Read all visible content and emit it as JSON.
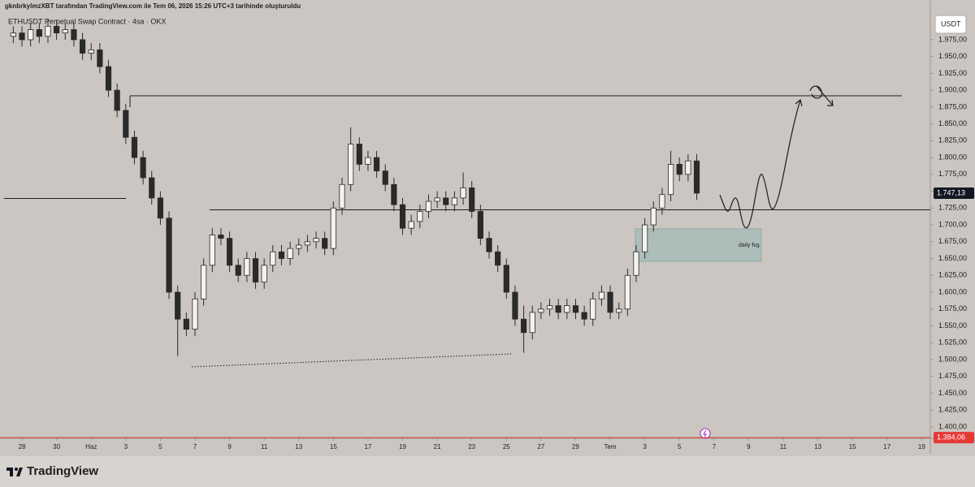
{
  "header": {
    "caption": "gknbrkylmzXBT tarafından TradingView.com ile Tem 06, 2026 15:26 UTC+3 tarihinde oluşturuldu"
  },
  "chart_data": {
    "type": "candlestick",
    "title": "ETHUSDT Perpetual Swap Contract · 4sa · OKX",
    "currency": "USDT",
    "x": [
      -0.5,
      0,
      0.5,
      1,
      1.5,
      2,
      2.5,
      3,
      3.5,
      4,
      4.5,
      5,
      5.5,
      6,
      6.5,
      7,
      7.5,
      8,
      8.5,
      9,
      9.5,
      10,
      10.5,
      11,
      11.5,
      12,
      12.5,
      13,
      13.5,
      14,
      14.5,
      15,
      15.5,
      16,
      16.5,
      17,
      17.5,
      18,
      18.5,
      19,
      19.5,
      20,
      20.5,
      21,
      21.5,
      22,
      22.5,
      23,
      23.5,
      24,
      24.5,
      25,
      25.5,
      26,
      26.5,
      27,
      27.5,
      28,
      28.5,
      29,
      29.5,
      30,
      30.5,
      31,
      31.5,
      32,
      32.5,
      33,
      33.5,
      34,
      34.5,
      35,
      35.5,
      36,
      36.5,
      37,
      37.5,
      38,
      38.5,
      39
    ],
    "open": [
      1980,
      1985,
      1975,
      1990,
      1980,
      1995,
      1985,
      1990,
      1975,
      1955,
      1960,
      1935,
      1900,
      1870,
      1830,
      1800,
      1770,
      1740,
      1710,
      1600,
      1560,
      1545,
      1590,
      1640,
      1685,
      1680,
      1640,
      1625,
      1650,
      1615,
      1640,
      1660,
      1650,
      1665,
      1670,
      1675,
      1680,
      1665,
      1725,
      1760,
      1820,
      1790,
      1800,
      1780,
      1760,
      1730,
      1695,
      1705,
      1720,
      1735,
      1740,
      1730,
      1740,
      1755,
      1720,
      1680,
      1660,
      1640,
      1600,
      1560,
      1540,
      1570,
      1575,
      1580,
      1570,
      1580,
      1570,
      1560,
      1590,
      1600,
      1570,
      1575,
      1625,
      1660,
      1700,
      1725,
      1745,
      1790,
      1775,
      1795
    ],
    "high": [
      1995,
      1995,
      2000,
      2000,
      2005,
      2005,
      2000,
      2000,
      1985,
      1970,
      1970,
      1945,
      1910,
      1880,
      1840,
      1810,
      1780,
      1750,
      1720,
      1610,
      1570,
      1600,
      1650,
      1695,
      1695,
      1690,
      1650,
      1660,
      1660,
      1650,
      1670,
      1670,
      1675,
      1680,
      1685,
      1690,
      1690,
      1735,
      1770,
      1845,
      1830,
      1810,
      1810,
      1790,
      1770,
      1740,
      1715,
      1730,
      1745,
      1750,
      1750,
      1750,
      1778,
      1765,
      1730,
      1690,
      1670,
      1650,
      1610,
      1580,
      1580,
      1585,
      1590,
      1590,
      1590,
      1590,
      1580,
      1600,
      1610,
      1610,
      1585,
      1635,
      1670,
      1710,
      1735,
      1755,
      1810,
      1800,
      1805,
      1805
    ],
    "low": [
      1970,
      1965,
      1965,
      1970,
      1970,
      1975,
      1975,
      1965,
      1945,
      1945,
      1925,
      1890,
      1860,
      1820,
      1790,
      1760,
      1730,
      1700,
      1590,
      1505,
      1535,
      1535,
      1580,
      1630,
      1670,
      1630,
      1615,
      1615,
      1605,
      1605,
      1630,
      1640,
      1640,
      1655,
      1660,
      1665,
      1655,
      1655,
      1715,
      1750,
      1780,
      1780,
      1770,
      1750,
      1720,
      1685,
      1685,
      1695,
      1710,
      1725,
      1720,
      1720,
      1730,
      1710,
      1670,
      1650,
      1630,
      1590,
      1550,
      1510,
      1530,
      1560,
      1565,
      1560,
      1560,
      1560,
      1550,
      1550,
      1580,
      1560,
      1560,
      1565,
      1615,
      1650,
      1690,
      1715,
      1735,
      1765,
      1765,
      1737
    ],
    "close": [
      1985,
      1975,
      1990,
      1980,
      1995,
      1985,
      1990,
      1975,
      1955,
      1960,
      1935,
      1900,
      1870,
      1830,
      1800,
      1770,
      1740,
      1710,
      1600,
      1560,
      1545,
      1590,
      1640,
      1685,
      1680,
      1640,
      1625,
      1650,
      1615,
      1640,
      1660,
      1650,
      1665,
      1670,
      1675,
      1680,
      1665,
      1725,
      1760,
      1820,
      1790,
      1800,
      1780,
      1760,
      1730,
      1695,
      1705,
      1720,
      1735,
      1740,
      1730,
      1740,
      1755,
      1720,
      1680,
      1660,
      1640,
      1600,
      1560,
      1540,
      1570,
      1575,
      1580,
      1570,
      1580,
      1570,
      1560,
      1590,
      1600,
      1570,
      1575,
      1625,
      1660,
      1700,
      1725,
      1745,
      1790,
      1775,
      1795,
      1747.13
    ],
    "up_color": "#f4f2ef",
    "down_color": "#2a2a2a",
    "wick_color": "#2a2a2a",
    "xlim": [
      -1.27,
      52.5
    ],
    "ylim": [
      1383,
      2034
    ],
    "xticks": [
      {
        "value": 0,
        "label": "28"
      },
      {
        "value": 2,
        "label": "30"
      },
      {
        "value": 4,
        "label": "Haz"
      },
      {
        "value": 6,
        "label": "3"
      },
      {
        "value": 8,
        "label": "5"
      },
      {
        "value": 10,
        "label": "7"
      },
      {
        "value": 12,
        "label": "9"
      },
      {
        "value": 14,
        "label": "11"
      },
      {
        "value": 16,
        "label": "13"
      },
      {
        "value": 18,
        "label": "15"
      },
      {
        "value": 20,
        "label": "17"
      },
      {
        "value": 22,
        "label": "19"
      },
      {
        "value": 24,
        "label": "21"
      },
      {
        "value": 26,
        "label": "23"
      },
      {
        "value": 28,
        "label": "25"
      },
      {
        "value": 30,
        "label": "27"
      },
      {
        "value": 32,
        "label": "29"
      },
      {
        "value": 34,
        "label": "Tem"
      },
      {
        "value": 36,
        "label": "3"
      },
      {
        "value": 38,
        "label": "5"
      },
      {
        "value": 40,
        "label": "7"
      },
      {
        "value": 42,
        "label": "9"
      },
      {
        "value": 44,
        "label": "11"
      },
      {
        "value": 46,
        "label": "13"
      },
      {
        "value": 48,
        "label": "15"
      },
      {
        "value": 50,
        "label": "17"
      },
      {
        "value": 52,
        "label": "19"
      }
    ],
    "yticks": [
      {
        "value": 1400,
        "label": "1.400,00"
      },
      {
        "value": 1425,
        "label": "1.425,00"
      },
      {
        "value": 1450,
        "label": "1.450,00"
      },
      {
        "value": 1475,
        "label": "1.475,00"
      },
      {
        "value": 1500,
        "label": "1.500,00"
      },
      {
        "value": 1525,
        "label": "1.525,00"
      },
      {
        "value": 1550,
        "label": "1.550,00"
      },
      {
        "value": 1575,
        "label": "1.575,00"
      },
      {
        "value": 1600,
        "label": "1.600,00"
      },
      {
        "value": 1625,
        "label": "1.625,00"
      },
      {
        "value": 1650,
        "label": "1.650,00"
      },
      {
        "value": 1675,
        "label": "1.675,00"
      },
      {
        "value": 1700,
        "label": "1.700,00"
      },
      {
        "value": 1725,
        "label": "1.725,00"
      },
      {
        "value": 1750,
        "label": "1.750,00"
      },
      {
        "value": 1775,
        "label": "1.775,00"
      },
      {
        "value": 1800,
        "label": "1.800,00"
      },
      {
        "value": 1825,
        "label": "1.825,00"
      },
      {
        "value": 1850,
        "label": "1.850,00"
      },
      {
        "value": 1875,
        "label": "1.875,00"
      },
      {
        "value": 1900,
        "label": "1.900,00"
      },
      {
        "value": 1925,
        "label": "1.925,00"
      },
      {
        "value": 1950,
        "label": "1.950,00"
      },
      {
        "value": 1975,
        "label": "1.975,00"
      }
    ],
    "price_tags": [
      {
        "value": 1747.13,
        "label": "1.747,13",
        "color": "#131722"
      },
      {
        "value": 1384.06,
        "label": "1.384,06",
        "color": "#e53935"
      }
    ],
    "annotations": [
      "daily fvg"
    ]
  },
  "footer": {
    "brand": "TradingView"
  }
}
